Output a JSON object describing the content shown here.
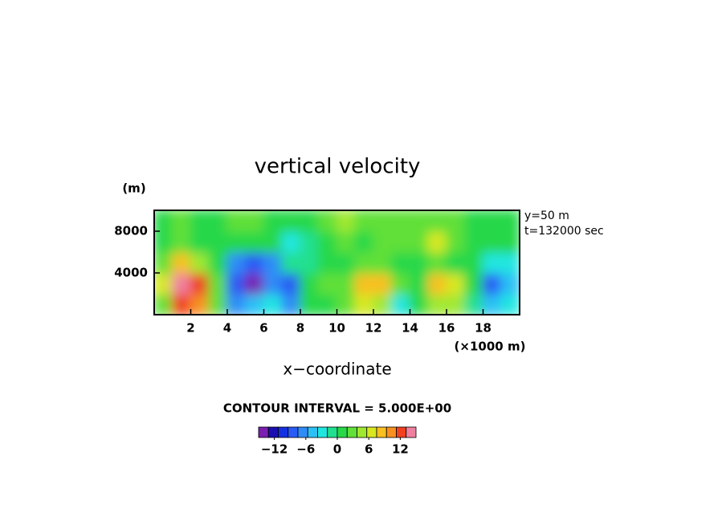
{
  "chart_data": {
    "type": "heatmap",
    "title": "vertical velocity",
    "x_label": "x−coordinate",
    "x_unit": "(×1000 m)",
    "y_unit": "(m)",
    "annotations": [
      "y=50 m",
      "t=132000 sec"
    ],
    "contour_note": "CONTOUR INTERVAL = 5.000E+00",
    "xlim": [
      0,
      20
    ],
    "xticks": [
      2,
      4,
      6,
      8,
      10,
      12,
      14,
      16,
      18
    ],
    "ylim": [
      0,
      10000
    ],
    "yticks": [
      4000,
      8000
    ],
    "x": [
      0.5,
      1.5,
      2.5,
      3.5,
      4.5,
      5.5,
      6.5,
      7.5,
      8.5,
      9.5,
      10.5,
      11.5,
      12.5,
      13.5,
      14.5,
      15.5,
      16.5,
      17.5,
      18.5,
      19.5
    ],
    "y": [
      1000,
      3000,
      5000,
      7000,
      9000
    ],
    "z": [
      [
        3,
        12,
        10,
        2,
        -6,
        -4,
        -3,
        -6,
        0,
        1,
        2,
        6,
        4,
        -2,
        1,
        5,
        4,
        -1,
        -5,
        -2
      ],
      [
        6,
        15,
        12,
        3,
        -8,
        -14,
        -6,
        -8,
        0,
        2,
        3,
        8,
        9,
        2,
        1,
        8,
        6,
        1,
        -9,
        -4
      ],
      [
        3,
        8,
        5,
        0,
        -6,
        -8,
        -7,
        -1,
        -1,
        0,
        1,
        2,
        2,
        1,
        1,
        2,
        1,
        0,
        -2,
        -3
      ],
      [
        1,
        2,
        1,
        0,
        0,
        0,
        1,
        -3,
        -1,
        1,
        2,
        1,
        2,
        2,
        3,
        7,
        2,
        1,
        1,
        1
      ],
      [
        1,
        2,
        1,
        1,
        2,
        3,
        1,
        1,
        0,
        2,
        4,
        2,
        2,
        3,
        2,
        3,
        2,
        1,
        0,
        1
      ]
    ],
    "colorbar": {
      "lim": [
        -15,
        15
      ],
      "ticks": [
        {
          "value": -12,
          "label": "−12"
        },
        {
          "value": -6,
          "label": "−6"
        },
        0,
        6,
        12
      ],
      "colors": [
        "#7a1fb0",
        "#1a10b0",
        "#1530e0",
        "#2a5af5",
        "#2f8cf7",
        "#2cc0f5",
        "#20e6e0",
        "#20e090",
        "#28d848",
        "#60e038",
        "#a0e830",
        "#d8e820",
        "#f8c020",
        "#f89020",
        "#f04020",
        "#f080a0"
      ]
    }
  }
}
